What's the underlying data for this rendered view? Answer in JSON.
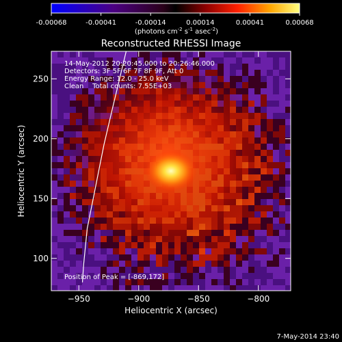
{
  "colorbar": {
    "ticks": [
      "-0.00068",
      "-0.00041",
      "-0.00014",
      "0.00014",
      "0.00041",
      "0.00068"
    ],
    "units_prefix": "(photons cm",
    "units_exp1": "-2",
    "units_mid": " s",
    "units_exp2": "-1",
    "units_mid2": " asec",
    "units_exp3": "-2",
    "units_suffix": ")"
  },
  "plot": {
    "title": "Reconstructed RHESSI Image",
    "time_range": "14-May-2012 20:20:45.000 to 20:26:46.000",
    "detectors": "Detectors: 3F 5F 6F 7F 8F 9F, Att 0",
    "energy_range": "Energy Range: 12.0 - 25.0 keV",
    "method_counts": "Clean    Total counts: 7.55E+03",
    "peak": "Position of Peak = [-869,172]",
    "xlabel": "Heliocentric X (arcsec)",
    "ylabel": "Heliocentric Y (arcsec)",
    "x_ticks": [
      -950,
      -900,
      -850,
      -800
    ],
    "y_ticks": [
      100,
      150,
      200,
      250
    ],
    "x_range": [
      -973,
      -773
    ],
    "y_range": [
      73,
      273
    ],
    "peak_position": [
      -869,
      172
    ],
    "limb_curve": [
      [
        -947,
        80
      ],
      [
        -946,
        95
      ],
      [
        -943,
        125
      ],
      [
        -938,
        150
      ],
      [
        -933,
        175
      ],
      [
        -929,
        195
      ],
      [
        -922,
        225
      ],
      [
        -916,
        250
      ],
      [
        -910,
        275
      ]
    ]
  },
  "footer": {
    "timestamp": "7-May-2014 23:40"
  }
}
